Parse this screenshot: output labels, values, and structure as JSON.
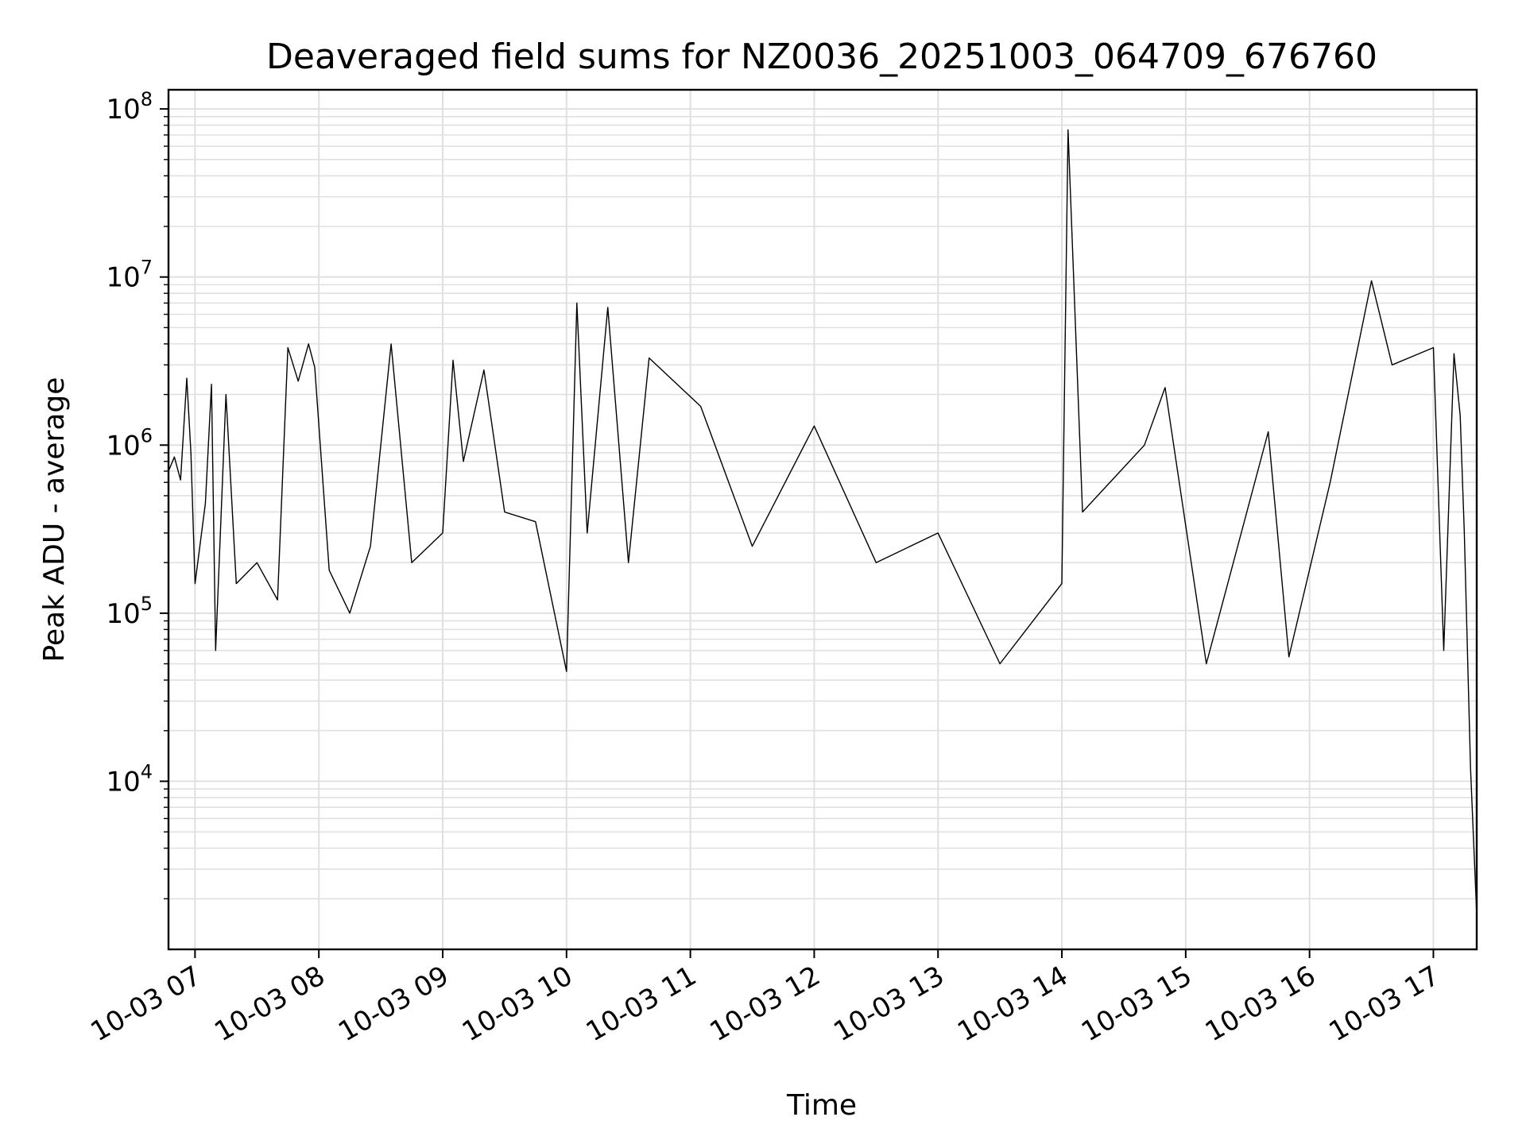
{
  "chart_data": {
    "type": "line",
    "title": "Deaveraged field sums for NZ0036_20251003_064709_676760",
    "xlabel": "Time",
    "ylabel": "Peak ADU - average",
    "yscale": "log",
    "ylim": [
      1000,
      130000000
    ],
    "xlim": [
      "2025-10-03 06:47:09",
      "2025-10-03 17:21:00"
    ],
    "grid": true,
    "line_color": "#000000",
    "grid_color": "#e0e0e0",
    "x_ticks": [
      {
        "value": "2025-10-03 07:00",
        "label": "10-03 07"
      },
      {
        "value": "2025-10-03 08:00",
        "label": "10-03 08"
      },
      {
        "value": "2025-10-03 09:00",
        "label": "10-03 09"
      },
      {
        "value": "2025-10-03 10:00",
        "label": "10-03 10"
      },
      {
        "value": "2025-10-03 11:00",
        "label": "10-03 11"
      },
      {
        "value": "2025-10-03 12:00",
        "label": "10-03 12"
      },
      {
        "value": "2025-10-03 13:00",
        "label": "10-03 13"
      },
      {
        "value": "2025-10-03 14:00",
        "label": "10-03 14"
      },
      {
        "value": "2025-10-03 15:00",
        "label": "10-03 15"
      },
      {
        "value": "2025-10-03 16:00",
        "label": "10-03 16"
      },
      {
        "value": "2025-10-03 17:00",
        "label": "10-03 17"
      }
    ],
    "y_ticks": [
      {
        "value": 10000,
        "base": "10",
        "exp": "4"
      },
      {
        "value": 100000,
        "base": "10",
        "exp": "5"
      },
      {
        "value": 1000000,
        "base": "10",
        "exp": "6"
      },
      {
        "value": 10000000,
        "base": "10",
        "exp": "7"
      },
      {
        "value": 100000000,
        "base": "10",
        "exp": "8"
      }
    ],
    "series": [
      {
        "values": [
          [
            "2025-10-03 06:47:09",
            700000
          ],
          [
            "2025-10-03 06:50",
            850000
          ],
          [
            "2025-10-03 06:53",
            620000
          ],
          [
            "2025-10-03 06:56",
            2500000
          ],
          [
            "2025-10-03 06:58",
            900000
          ],
          [
            "2025-10-03 07:00",
            150000
          ],
          [
            "2025-10-03 07:05",
            450000
          ],
          [
            "2025-10-03 07:08",
            2300000
          ],
          [
            "2025-10-03 07:10",
            60000
          ],
          [
            "2025-10-03 07:15",
            2000000
          ],
          [
            "2025-10-03 07:20",
            150000
          ],
          [
            "2025-10-03 07:30",
            200000
          ],
          [
            "2025-10-03 07:40",
            120000
          ],
          [
            "2025-10-03 07:45",
            3800000
          ],
          [
            "2025-10-03 07:50",
            2400000
          ],
          [
            "2025-10-03 07:55",
            4000000
          ],
          [
            "2025-10-03 07:58",
            2900000
          ],
          [
            "2025-10-03 08:05",
            180000
          ],
          [
            "2025-10-03 08:15",
            100000
          ],
          [
            "2025-10-03 08:25",
            250000
          ],
          [
            "2025-10-03 08:35",
            4000000
          ],
          [
            "2025-10-03 08:45",
            200000
          ],
          [
            "2025-10-03 09:00",
            300000
          ],
          [
            "2025-10-03 09:05",
            3200000
          ],
          [
            "2025-10-03 09:10",
            800000
          ],
          [
            "2025-10-03 09:20",
            2800000
          ],
          [
            "2025-10-03 09:30",
            400000
          ],
          [
            "2025-10-03 09:45",
            350000
          ],
          [
            "2025-10-03 10:00",
            45000
          ],
          [
            "2025-10-03 10:05",
            7000000
          ],
          [
            "2025-10-03 10:10",
            300000
          ],
          [
            "2025-10-03 10:20",
            6600000
          ],
          [
            "2025-10-03 10:30",
            200000
          ],
          [
            "2025-10-03 10:40",
            3300000
          ],
          [
            "2025-10-03 11:05",
            1700000
          ],
          [
            "2025-10-03 11:30",
            250000
          ],
          [
            "2025-10-03 12:00",
            1300000
          ],
          [
            "2025-10-03 12:30",
            200000
          ],
          [
            "2025-10-03 13:00",
            300000
          ],
          [
            "2025-10-03 13:30",
            50000
          ],
          [
            "2025-10-03 14:00",
            150000
          ],
          [
            "2025-10-03 14:03",
            75000000
          ],
          [
            "2025-10-03 14:10",
            400000
          ],
          [
            "2025-10-03 14:40",
            1000000
          ],
          [
            "2025-10-03 14:50",
            2200000
          ],
          [
            "2025-10-03 15:10",
            50000
          ],
          [
            "2025-10-03 15:40",
            1200000
          ],
          [
            "2025-10-03 15:50",
            55000
          ],
          [
            "2025-10-03 16:10",
            600000
          ],
          [
            "2025-10-03 16:30",
            9500000
          ],
          [
            "2025-10-03 16:40",
            3000000
          ],
          [
            "2025-10-03 17:00",
            3800000
          ],
          [
            "2025-10-03 17:05",
            60000
          ],
          [
            "2025-10-03 17:10",
            3500000
          ],
          [
            "2025-10-03 17:13",
            1500000
          ],
          [
            "2025-10-03 17:15",
            300000
          ],
          [
            "2025-10-03 17:18",
            12000
          ],
          [
            "2025-10-03 17:21",
            1600
          ]
        ]
      }
    ]
  }
}
